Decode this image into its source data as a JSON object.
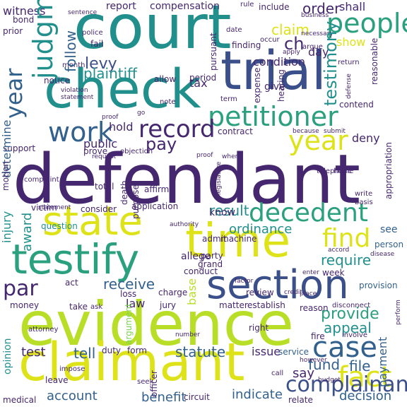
{
  "palette": {
    "background": "#ffffff",
    "dark_purple": "#45276f",
    "indigo": "#3b4f8a",
    "slate_blue": "#33618d",
    "teal": "#21908d",
    "green_teal": "#2aa07e",
    "green": "#3fbb6f",
    "lime": "#7cd250",
    "yellow_green": "#b9de28",
    "yellow": "#dde318"
  },
  "words": [
    {
      "text": "defendant",
      "color": "#45276f"
    },
    {
      "text": "evidence",
      "color": "#b9de28"
    },
    {
      "text": "court",
      "color": "#21908d"
    },
    {
      "text": "trial",
      "color": "#3b4f8a"
    },
    {
      "text": "check",
      "color": "#21908d"
    },
    {
      "text": "claimant",
      "color": "#dde318"
    },
    {
      "text": "time",
      "color": "#dde318"
    },
    {
      "text": "testify",
      "color": "#2aa07e"
    },
    {
      "text": "section",
      "color": "#3b4f8a"
    },
    {
      "text": "state",
      "color": "#dde318"
    },
    {
      "text": "petitioner",
      "color": "#2aa07e"
    },
    {
      "text": "case",
      "color": "#33618d"
    },
    {
      "text": "fact",
      "color": "#dde318"
    },
    {
      "text": "decedent",
      "color": "#2aa07e"
    },
    {
      "text": "people",
      "color": "#33618d"
    },
    {
      "text": "year",
      "color": "#2aa07e"
    },
    {
      "text": "record",
      "color": "#dde318"
    },
    {
      "text": "work",
      "color": "#45276f"
    },
    {
      "text": "par",
      "color": "#33618d"
    },
    {
      "text": "judgment",
      "color": "#45276f"
    },
    {
      "text": "find",
      "color": "#21908d"
    },
    {
      "text": "pay",
      "color": "#dde318"
    },
    {
      "text": "complainant",
      "color": "#45276f"
    },
    {
      "text": "levy",
      "color": "#3b4f8a"
    },
    {
      "text": "testimony",
      "color": "#3b4f8a"
    },
    {
      "text": "present",
      "color": "#21908d"
    },
    {
      "text": "provide",
      "color": "#2aa07e"
    },
    {
      "text": "ch",
      "color": "#45276f"
    },
    {
      "text": "report",
      "color": "#45276f"
    },
    {
      "text": "compensation",
      "color": "#45276f"
    },
    {
      "text": "order",
      "color": "#45276f"
    },
    {
      "text": "shall",
      "color": "#45276f"
    },
    {
      "text": "witness",
      "color": "#45276f"
    },
    {
      "text": "claim",
      "color": "#dde318"
    },
    {
      "text": "follow",
      "color": "#33618d"
    },
    {
      "text": "plaintiff",
      "color": "#21908d"
    },
    {
      "text": "result",
      "color": "#21908d"
    },
    {
      "text": "ordinance",
      "color": "#21908d"
    },
    {
      "text": "award",
      "color": "#21908d"
    },
    {
      "text": "require",
      "color": "#21908d"
    },
    {
      "text": "receive",
      "color": "#33618d"
    },
    {
      "text": "appeal",
      "color": "#21908d"
    },
    {
      "text": "statute",
      "color": "#33618d"
    },
    {
      "text": "fund",
      "color": "#33618d"
    },
    {
      "text": "file",
      "color": "#33618d"
    },
    {
      "text": "payment",
      "color": "#33618d"
    },
    {
      "text": "tell",
      "color": "#33618d"
    },
    {
      "text": "test",
      "color": "#45276f"
    },
    {
      "text": "account",
      "color": "#33618d"
    },
    {
      "text": "benefit",
      "color": "#33618d"
    },
    {
      "text": "indicate",
      "color": "#33618d"
    },
    {
      "text": "decision",
      "color": "#33618d"
    },
    {
      "text": "say",
      "color": "#45276f"
    },
    {
      "text": "issue",
      "color": "#45276f"
    },
    {
      "text": "hold",
      "color": "#45276f"
    },
    {
      "text": "public",
      "color": "#45276f"
    },
    {
      "text": "tax",
      "color": "#45276f"
    },
    {
      "text": "day",
      "color": "#45276f"
    },
    {
      "text": "show",
      "color": "#dde318"
    },
    {
      "text": "condition",
      "color": "#45276f"
    },
    {
      "text": "deny",
      "color": "#45276f"
    },
    {
      "text": "contend",
      "color": "#45276f"
    },
    {
      "text": "give",
      "color": "#45276f"
    },
    {
      "text": "know",
      "color": "#45276f"
    },
    {
      "text": "law",
      "color": "#45276f"
    },
    {
      "text": "base",
      "color": "#b9de28"
    },
    {
      "text": "injury",
      "color": "#21908d"
    },
    {
      "text": "determine",
      "color": "#33618d"
    },
    {
      "text": "question",
      "color": "#21908d"
    },
    {
      "text": "see",
      "color": "#33618d"
    },
    {
      "text": "person",
      "color": "#33618d"
    },
    {
      "text": "provision",
      "color": "#33618d"
    },
    {
      "text": "allege",
      "color": "#45276f"
    },
    {
      "text": "party",
      "color": "#45276f"
    },
    {
      "text": "grand",
      "color": "#45276f"
    },
    {
      "text": "review",
      "color": "#45276f"
    },
    {
      "text": "conduct",
      "color": "#45276f"
    },
    {
      "text": "charge",
      "color": "#45276f"
    },
    {
      "text": "jury",
      "color": "#45276f"
    },
    {
      "text": "matter",
      "color": "#45276f"
    },
    {
      "text": "establish",
      "color": "#45276f"
    },
    {
      "text": "argument",
      "color": "#7cd250"
    },
    {
      "text": "right",
      "color": "#45276f"
    },
    {
      "text": "fire",
      "color": "#45276f"
    },
    {
      "text": "service",
      "color": "#33618d"
    },
    {
      "text": "opinion",
      "color": "#21908d"
    },
    {
      "text": "duty",
      "color": "#45276f"
    },
    {
      "text": "form",
      "color": "#45276f"
    },
    {
      "text": "officer",
      "color": "#45276f"
    },
    {
      "text": "circuit",
      "color": "#45276f"
    },
    {
      "text": "take",
      "color": "#45276f"
    },
    {
      "text": "application",
      "color": "#45276f"
    },
    {
      "text": "consider",
      "color": "#45276f"
    },
    {
      "text": "purpose",
      "color": "#45276f"
    },
    {
      "text": "affirm",
      "color": "#45276f"
    },
    {
      "text": "total",
      "color": "#45276f"
    },
    {
      "text": "death",
      "color": "#45276f"
    },
    {
      "text": "machine",
      "color": "#45276f"
    },
    {
      "text": "admit",
      "color": "#45276f"
    },
    {
      "text": "act",
      "color": "#45276f"
    },
    {
      "text": "leave",
      "color": "#45276f"
    },
    {
      "text": "medical",
      "color": "#45276f"
    },
    {
      "text": "prove",
      "color": "#45276f"
    },
    {
      "text": "contract",
      "color": "#45276f"
    },
    {
      "text": "support",
      "color": "#45276f"
    },
    {
      "text": "motion",
      "color": "#45276f"
    },
    {
      "text": "victim",
      "color": "#45276f"
    },
    {
      "text": "money",
      "color": "#45276f"
    },
    {
      "text": "loss",
      "color": "#45276f"
    },
    {
      "text": "fail",
      "color": "#45276f"
    },
    {
      "text": "notice",
      "color": "#45276f"
    },
    {
      "text": "month",
      "color": "#45276f"
    },
    {
      "text": "allow",
      "color": "#45276f"
    },
    {
      "text": "period",
      "color": "#45276f"
    },
    {
      "text": "finding",
      "color": "#45276f"
    },
    {
      "text": "pursuant",
      "color": "#45276f"
    },
    {
      "text": "include",
      "color": "#45276f"
    },
    {
      "text": "rule",
      "color": "#45276f"
    },
    {
      "text": "bond",
      "color": "#45276f"
    },
    {
      "text": "prior",
      "color": "#45276f"
    },
    {
      "text": "police",
      "color": "#45276f"
    },
    {
      "text": "date",
      "color": "#45276f"
    },
    {
      "text": "occur",
      "color": "#45276f"
    },
    {
      "text": "argue",
      "color": "#45276f"
    },
    {
      "text": "return",
      "color": "#45276f"
    },
    {
      "text": "hearing",
      "color": "#45276f"
    },
    {
      "text": "term",
      "color": "#45276f"
    },
    {
      "text": "note",
      "color": "#45276f"
    },
    {
      "text": "expense",
      "color": "#45276f"
    },
    {
      "text": "reasonable",
      "color": "#45276f"
    },
    {
      "text": "telephone",
      "color": "#45276f"
    },
    {
      "text": "appropriation",
      "color": "#45276f"
    },
    {
      "text": "write",
      "color": "#45276f"
    },
    {
      "text": "basis",
      "color": "#45276f"
    },
    {
      "text": "disease",
      "color": "#45276f"
    },
    {
      "text": "week",
      "color": "#45276f"
    },
    {
      "text": "enter",
      "color": "#45276f"
    },
    {
      "text": "accord",
      "color": "#45276f"
    },
    {
      "text": "credit",
      "color": "#45276f"
    },
    {
      "text": "place",
      "color": "#45276f"
    },
    {
      "text": "reason",
      "color": "#45276f"
    },
    {
      "text": "disconnect",
      "color": "#45276f"
    },
    {
      "text": "involve",
      "color": "#45276f"
    },
    {
      "text": "however",
      "color": "#45276f"
    },
    {
      "text": "budget",
      "color": "#45276f"
    },
    {
      "text": "relate",
      "color": "#45276f"
    },
    {
      "text": "call",
      "color": "#45276f"
    },
    {
      "text": "seek",
      "color": "#45276f"
    },
    {
      "text": "impose",
      "color": "#45276f"
    },
    {
      "text": "attorney",
      "color": "#45276f"
    },
    {
      "text": "number",
      "color": "#45276f"
    },
    {
      "text": "ask",
      "color": "#45276f"
    },
    {
      "text": "objection",
      "color": "#45276f"
    },
    {
      "text": "request",
      "color": "#45276f"
    },
    {
      "text": "when",
      "color": "#45276f"
    },
    {
      "text": "home",
      "color": "#45276f"
    },
    {
      "text": "because",
      "color": "#45276f"
    },
    {
      "text": "submit",
      "color": "#45276f"
    },
    {
      "text": "defense",
      "color": "#45276f"
    },
    {
      "text": "necessary",
      "color": "#45276f"
    },
    {
      "text": "sentence",
      "color": "#45276f"
    },
    {
      "text": "business",
      "color": "#45276f"
    },
    {
      "text": "statement",
      "color": "#45276f"
    },
    {
      "text": "violation",
      "color": "#45276f"
    },
    {
      "text": "proof",
      "color": "#45276f"
    },
    {
      "text": "go",
      "color": "#45276f"
    },
    {
      "text": "legislature",
      "color": "#45276f"
    },
    {
      "text": "factor",
      "color": "#45276f"
    },
    {
      "text": "authority",
      "color": "#45276f"
    },
    {
      "text": "perform",
      "color": "#45276f"
    },
    {
      "text": "apply",
      "color": "#45276f"
    },
    {
      "text": "complaint",
      "color": "#45276f"
    },
    {
      "text": "error",
      "color": "#45276f"
    },
    {
      "text": "%",
      "color": "#45276f"
    }
  ]
}
